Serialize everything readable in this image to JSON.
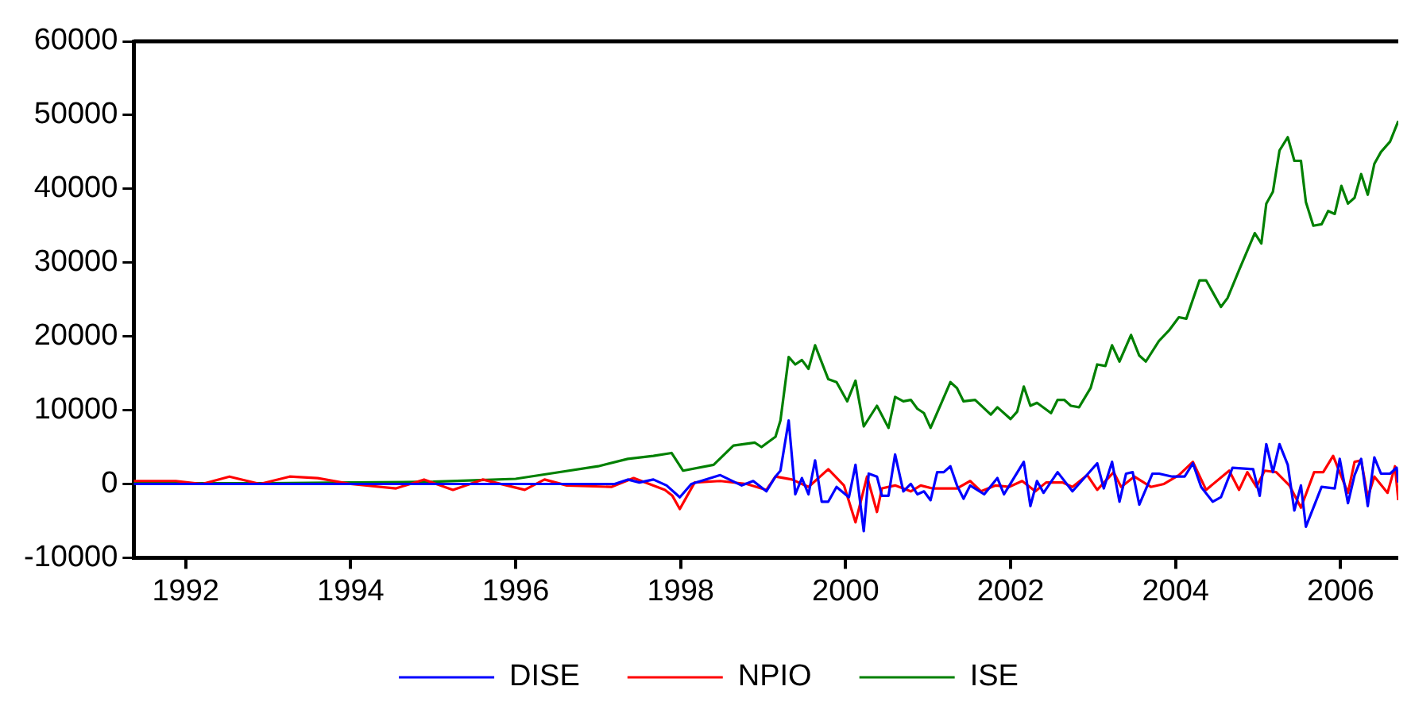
{
  "chart_data": {
    "type": "line",
    "xlim": [
      1991.37,
      2006.7
    ],
    "xticks": [
      1992,
      1994,
      1996,
      1998,
      2000,
      2002,
      2004,
      2006
    ],
    "ylim": [
      -10000,
      60000
    ],
    "yticks": [
      -10000,
      0,
      10000,
      20000,
      30000,
      40000,
      50000,
      60000
    ],
    "grid": false,
    "legend": "bottom",
    "series": [
      {
        "name": "DISE",
        "color": "#0000ff",
        "x": [
          1991.37,
          1997.2,
          1997.36,
          1997.5,
          1997.67,
          1997.83,
          1997.99,
          1998.13,
          1998.48,
          1998.74,
          1998.88,
          1999.04,
          1999.15,
          1999.21,
          1999.31,
          1999.39,
          1999.47,
          1999.55,
          1999.63,
          1999.71,
          1999.79,
          1999.89,
          2000.04,
          2000.12,
          2000.22,
          2000.28,
          2000.38,
          2000.44,
          2000.52,
          2000.6,
          2000.7,
          2000.79,
          2000.87,
          2000.95,
          2001.03,
          2001.11,
          2001.19,
          2001.27,
          2001.35,
          2001.43,
          2001.51,
          2001.68,
          2001.84,
          2001.92,
          2002.16,
          2002.24,
          2002.32,
          2002.4,
          2002.57,
          2002.75,
          2003.05,
          2003.13,
          2003.23,
          2003.32,
          2003.4,
          2003.48,
          2003.56,
          2003.72,
          2003.8,
          2003.96,
          2004.11,
          2004.21,
          2004.31,
          2004.45,
          2004.55,
          2004.69,
          2004.94,
          2005.02,
          2005.1,
          2005.18,
          2005.26,
          2005.36,
          2005.44,
          2005.52,
          2005.58,
          2005.77,
          2005.93,
          2005.99,
          2006.09,
          2006.17,
          2006.25,
          2006.33,
          2006.41,
          2006.49,
          2006.6,
          2006.68,
          2006.7
        ],
        "values": [
          0,
          0,
          600,
          200,
          600,
          -200,
          -1800,
          0,
          1200,
          -200,
          400,
          -1000,
          1000,
          1800,
          8600,
          -1400,
          800,
          -1400,
          3200,
          -2400,
          -2400,
          -400,
          -1800,
          2600,
          -6400,
          1400,
          1000,
          -1600,
          -1600,
          4000,
          -1000,
          0,
          -1400,
          -1000,
          -2200,
          1600,
          1600,
          2400,
          -200,
          -2000,
          -200,
          -1400,
          800,
          -1400,
          3000,
          -3000,
          400,
          -1200,
          1600,
          -1000,
          2800,
          -600,
          3000,
          -2400,
          1400,
          1600,
          -2800,
          1400,
          1400,
          1000,
          1000,
          2800,
          -400,
          -2400,
          -1800,
          2200,
          2000,
          -1600,
          5400,
          1600,
          5400,
          2600,
          -3600,
          -200,
          -5800,
          -400,
          -600,
          3400,
          -2600,
          1200,
          3400,
          -3000,
          3600,
          1400,
          1400,
          2200,
          200
        ]
      },
      {
        "name": "NPIO",
        "color": "#ff0000",
        "x": [
          1991.37,
          1991.88,
          1992.2,
          1992.53,
          1992.9,
          1993.26,
          1993.6,
          1994.0,
          1994.55,
          1994.89,
          1995.24,
          1995.6,
          1996.11,
          1996.35,
          1996.62,
          1997.16,
          1997.43,
          1997.81,
          1997.9,
          1997.99,
          1998.17,
          1998.48,
          1998.8,
          1999.04,
          1999.15,
          1999.35,
          1999.55,
          1999.79,
          1999.98,
          2000.12,
          2000.26,
          2000.38,
          2000.44,
          2000.6,
          2000.79,
          2000.91,
          2001.05,
          2001.35,
          2001.51,
          2001.64,
          2001.82,
          2001.98,
          2002.14,
          2002.3,
          2002.43,
          2002.63,
          2002.75,
          2002.93,
          2003.05,
          2003.25,
          2003.34,
          2003.5,
          2003.7,
          2003.86,
          2004.04,
          2004.21,
          2004.37,
          2004.65,
          2004.77,
          2004.87,
          2004.98,
          2005.08,
          2005.22,
          2005.38,
          2005.52,
          2005.68,
          2005.79,
          2005.91,
          2006.01,
          2006.09,
          2006.17,
          2006.25,
          2006.33,
          2006.41,
          2006.57,
          2006.66,
          2006.7
        ],
        "values": [
          400,
          400,
          0,
          1000,
          0,
          1000,
          800,
          0,
          -600,
          600,
          -800,
          600,
          -800,
          600,
          -200,
          -400,
          800,
          -800,
          -1600,
          -3400,
          200,
          400,
          0,
          -800,
          1000,
          600,
          -400,
          2000,
          -200,
          -5200,
          1000,
          -3800,
          -600,
          -200,
          -1000,
          -200,
          -600,
          -600,
          400,
          -1000,
          -200,
          -400,
          400,
          -1000,
          200,
          200,
          -400,
          1200,
          -800,
          1600,
          -400,
          1000,
          -400,
          0,
          1200,
          3000,
          -800,
          1800,
          -800,
          1600,
          -400,
          1800,
          1600,
          -200,
          -3200,
          1600,
          1600,
          3800,
          1000,
          -1200,
          3000,
          3200,
          -1800,
          1000,
          -1200,
          2400,
          -2200
        ]
      },
      {
        "name": "ISE",
        "color": "#008000",
        "x": [
          1991.37,
          1993.0,
          1994.0,
          1995.0,
          1995.5,
          1996.0,
          1996.41,
          1997.0,
          1997.36,
          1997.67,
          1997.89,
          1998.03,
          1998.4,
          1998.64,
          1998.9,
          1998.98,
          1999.15,
          1999.21,
          1999.31,
          1999.39,
          1999.47,
          1999.55,
          1999.63,
          1999.79,
          1999.89,
          2000.02,
          2000.12,
          2000.22,
          2000.38,
          2000.52,
          2000.6,
          2000.7,
          2000.79,
          2000.87,
          2000.95,
          2001.03,
          2001.17,
          2001.27,
          2001.35,
          2001.43,
          2001.57,
          2001.76,
          2001.84,
          2002.0,
          2002.08,
          2002.16,
          2002.24,
          2002.32,
          2002.49,
          2002.57,
          2002.65,
          2002.73,
          2002.83,
          2002.97,
          2003.05,
          2003.15,
          2003.23,
          2003.32,
          2003.46,
          2003.56,
          2003.64,
          2003.8,
          2003.92,
          2004.04,
          2004.13,
          2004.29,
          2004.37,
          2004.55,
          2004.63,
          2004.77,
          2004.96,
          2005.04,
          2005.1,
          2005.18,
          2005.26,
          2005.36,
          2005.44,
          2005.52,
          2005.58,
          2005.67,
          2005.77,
          2005.85,
          2005.93,
          2006.01,
          2006.09,
          2006.17,
          2006.25,
          2006.33,
          2006.41,
          2006.49,
          2006.6,
          2006.7
        ],
        "values": [
          100,
          100,
          200,
          300,
          500,
          700,
          1400,
          2400,
          3400,
          3800,
          4200,
          1800,
          2600,
          5200,
          5600,
          5000,
          6400,
          8600,
          17200,
          16200,
          16800,
          15600,
          18800,
          14200,
          13800,
          11200,
          14000,
          7800,
          10600,
          7600,
          11800,
          11200,
          11400,
          10200,
          9600,
          7600,
          11200,
          13800,
          13000,
          11200,
          11400,
          9400,
          10400,
          8800,
          9800,
          13200,
          10600,
          11000,
          9600,
          11400,
          11400,
          10600,
          10400,
          13000,
          16200,
          16000,
          18800,
          16600,
          20200,
          17400,
          16600,
          19400,
          20800,
          22600,
          22400,
          27600,
          27600,
          24000,
          25200,
          29000,
          34000,
          32600,
          38000,
          39600,
          45200,
          47000,
          43800,
          43800,
          38200,
          35000,
          35200,
          37000,
          36600,
          40400,
          38000,
          38800,
          42000,
          39200,
          43400,
          45000,
          46400,
          49200
        ]
      }
    ]
  }
}
